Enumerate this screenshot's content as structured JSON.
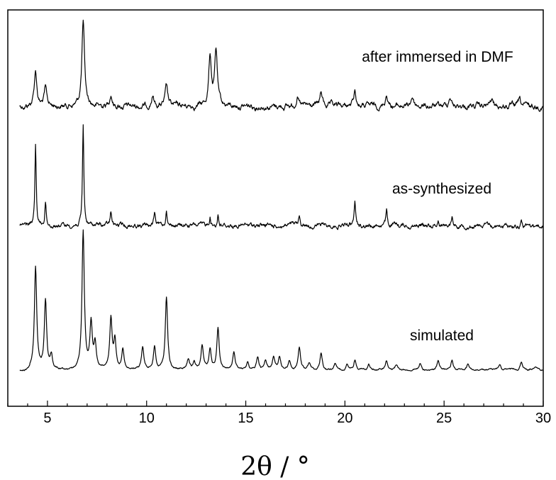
{
  "chart_data": {
    "type": "line",
    "title": "",
    "xlabel": "2θ / °",
    "ylabel": "",
    "xlim": [
      3,
      30
    ],
    "xticks": [
      5,
      10,
      15,
      20,
      25,
      30
    ],
    "yticks_shown": false,
    "grid": false,
    "legend": "none",
    "series": [
      {
        "name": "after immersed in DMF",
        "peaks": [
          [
            4.4,
            0.42
          ],
          [
            4.9,
            0.2
          ],
          [
            6.8,
            1.0
          ],
          [
            8.2,
            0.15
          ],
          [
            10.3,
            0.12
          ],
          [
            11.0,
            0.22
          ],
          [
            13.2,
            0.6
          ],
          [
            13.5,
            0.65
          ],
          [
            17.6,
            0.12
          ],
          [
            18.8,
            0.16
          ],
          [
            20.5,
            0.18
          ],
          [
            22.1,
            0.14
          ],
          [
            23.4,
            0.12
          ],
          [
            25.3,
            0.12
          ],
          [
            27.4,
            0.08
          ],
          [
            28.8,
            0.07
          ]
        ]
      },
      {
        "name": "as-synthesized",
        "peaks": [
          [
            4.4,
            0.8
          ],
          [
            4.9,
            0.25
          ],
          [
            6.8,
            1.0
          ],
          [
            8.2,
            0.13
          ],
          [
            10.4,
            0.12
          ],
          [
            11.0,
            0.18
          ],
          [
            13.2,
            0.1
          ],
          [
            13.6,
            0.12
          ],
          [
            17.7,
            0.08
          ],
          [
            20.5,
            0.25
          ],
          [
            22.1,
            0.15
          ],
          [
            24.7,
            0.06
          ],
          [
            25.4,
            0.1
          ],
          [
            28.9,
            0.06
          ]
        ]
      },
      {
        "name": "simulated",
        "peaks": [
          [
            4.4,
            0.73
          ],
          [
            4.9,
            0.5
          ],
          [
            5.2,
            0.1
          ],
          [
            6.8,
            1.0
          ],
          [
            7.2,
            0.33
          ],
          [
            7.4,
            0.17
          ],
          [
            8.2,
            0.36
          ],
          [
            8.4,
            0.2
          ],
          [
            8.8,
            0.15
          ],
          [
            9.8,
            0.16
          ],
          [
            10.4,
            0.17
          ],
          [
            11.0,
            0.52
          ],
          [
            12.1,
            0.07
          ],
          [
            12.4,
            0.05
          ],
          [
            12.8,
            0.18
          ],
          [
            13.2,
            0.15
          ],
          [
            13.6,
            0.3
          ],
          [
            14.4,
            0.12
          ],
          [
            15.1,
            0.06
          ],
          [
            15.6,
            0.09
          ],
          [
            16.0,
            0.07
          ],
          [
            16.4,
            0.09
          ],
          [
            16.7,
            0.1
          ],
          [
            17.2,
            0.06
          ],
          [
            17.7,
            0.16
          ],
          [
            18.2,
            0.05
          ],
          [
            18.8,
            0.12
          ],
          [
            19.5,
            0.04
          ],
          [
            20.1,
            0.04
          ],
          [
            20.5,
            0.07
          ],
          [
            21.2,
            0.04
          ],
          [
            22.1,
            0.07
          ],
          [
            22.6,
            0.04
          ],
          [
            23.8,
            0.05
          ],
          [
            24.7,
            0.06
          ],
          [
            25.4,
            0.07
          ],
          [
            26.2,
            0.04
          ],
          [
            27.8,
            0.04
          ],
          [
            28.9,
            0.06
          ],
          [
            29.6,
            0.03
          ]
        ]
      }
    ]
  }
}
